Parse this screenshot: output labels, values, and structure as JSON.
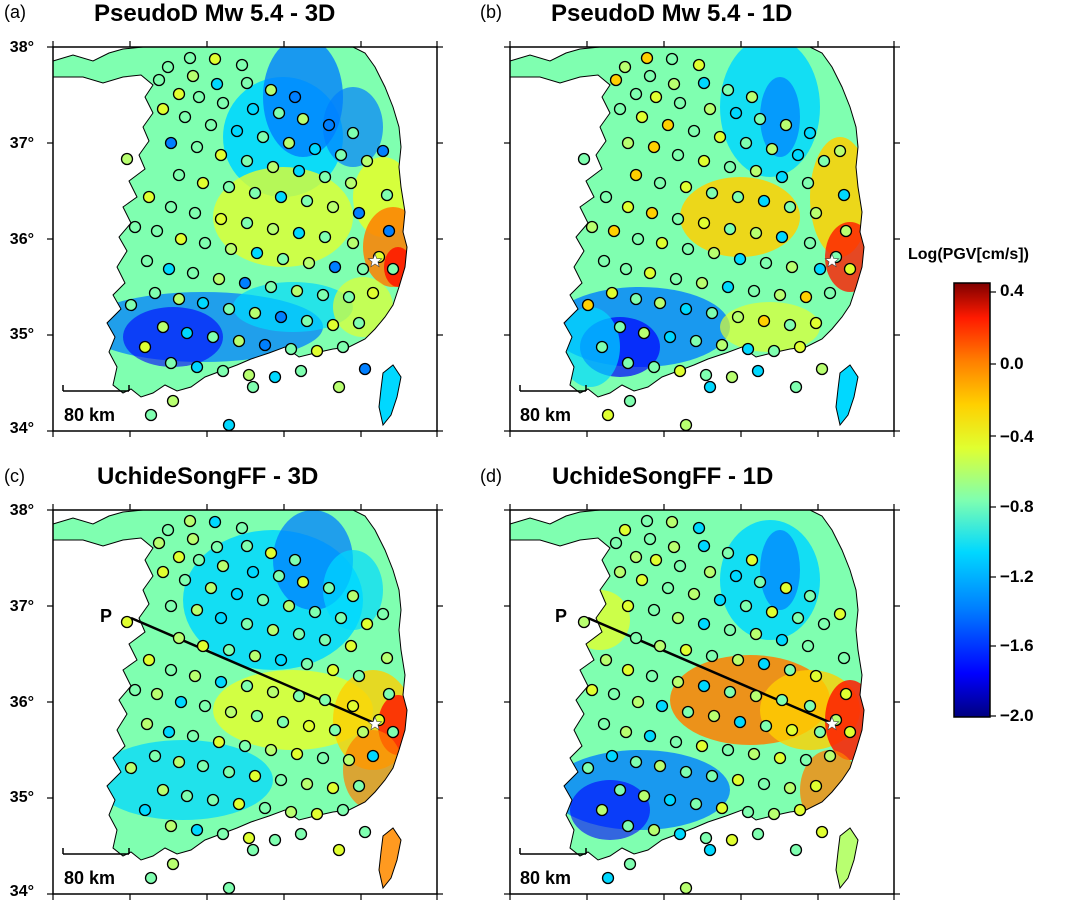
{
  "panels": [
    {
      "label": "(a)",
      "title": "PseudoD  Mw 5.4 - 3D",
      "scale": "80 km",
      "profile": "",
      "colormode": "a"
    },
    {
      "label": "(b)",
      "title": "PseudoD  Mw 5.4 - 1D",
      "scale": "80 km",
      "profile": "",
      "colormode": "b"
    },
    {
      "label": "(c)",
      "title": "UchideSongFF - 3D",
      "scale": "80 km",
      "profile": "P",
      "colormode": "c"
    },
    {
      "label": "(d)",
      "title": "UchideSongFF - 1D",
      "scale": "80 km",
      "profile": "P",
      "colormode": "d"
    }
  ],
  "lat_labels": [
    "38°",
    "37°",
    "36°",
    "35°",
    "34°"
  ],
  "colorbar": {
    "title": "Log(PGV[cm/s])",
    "ticks": [
      "0.4",
      "0.0",
      "−0.4",
      "−0.8",
      "−1.2",
      "−1.6",
      "−2.0"
    ],
    "range": [
      -2.0,
      0.5
    ],
    "colors": [
      "#00007f",
      "#0000ff",
      "#007fff",
      "#00d8ff",
      "#7fffb0",
      "#e0ff30",
      "#ffd000",
      "#ff7f00",
      "#ff1a00",
      "#7f0000"
    ]
  },
  "icons": {
    "epicenter": "white-star-icon",
    "station": "circle-icon"
  }
}
